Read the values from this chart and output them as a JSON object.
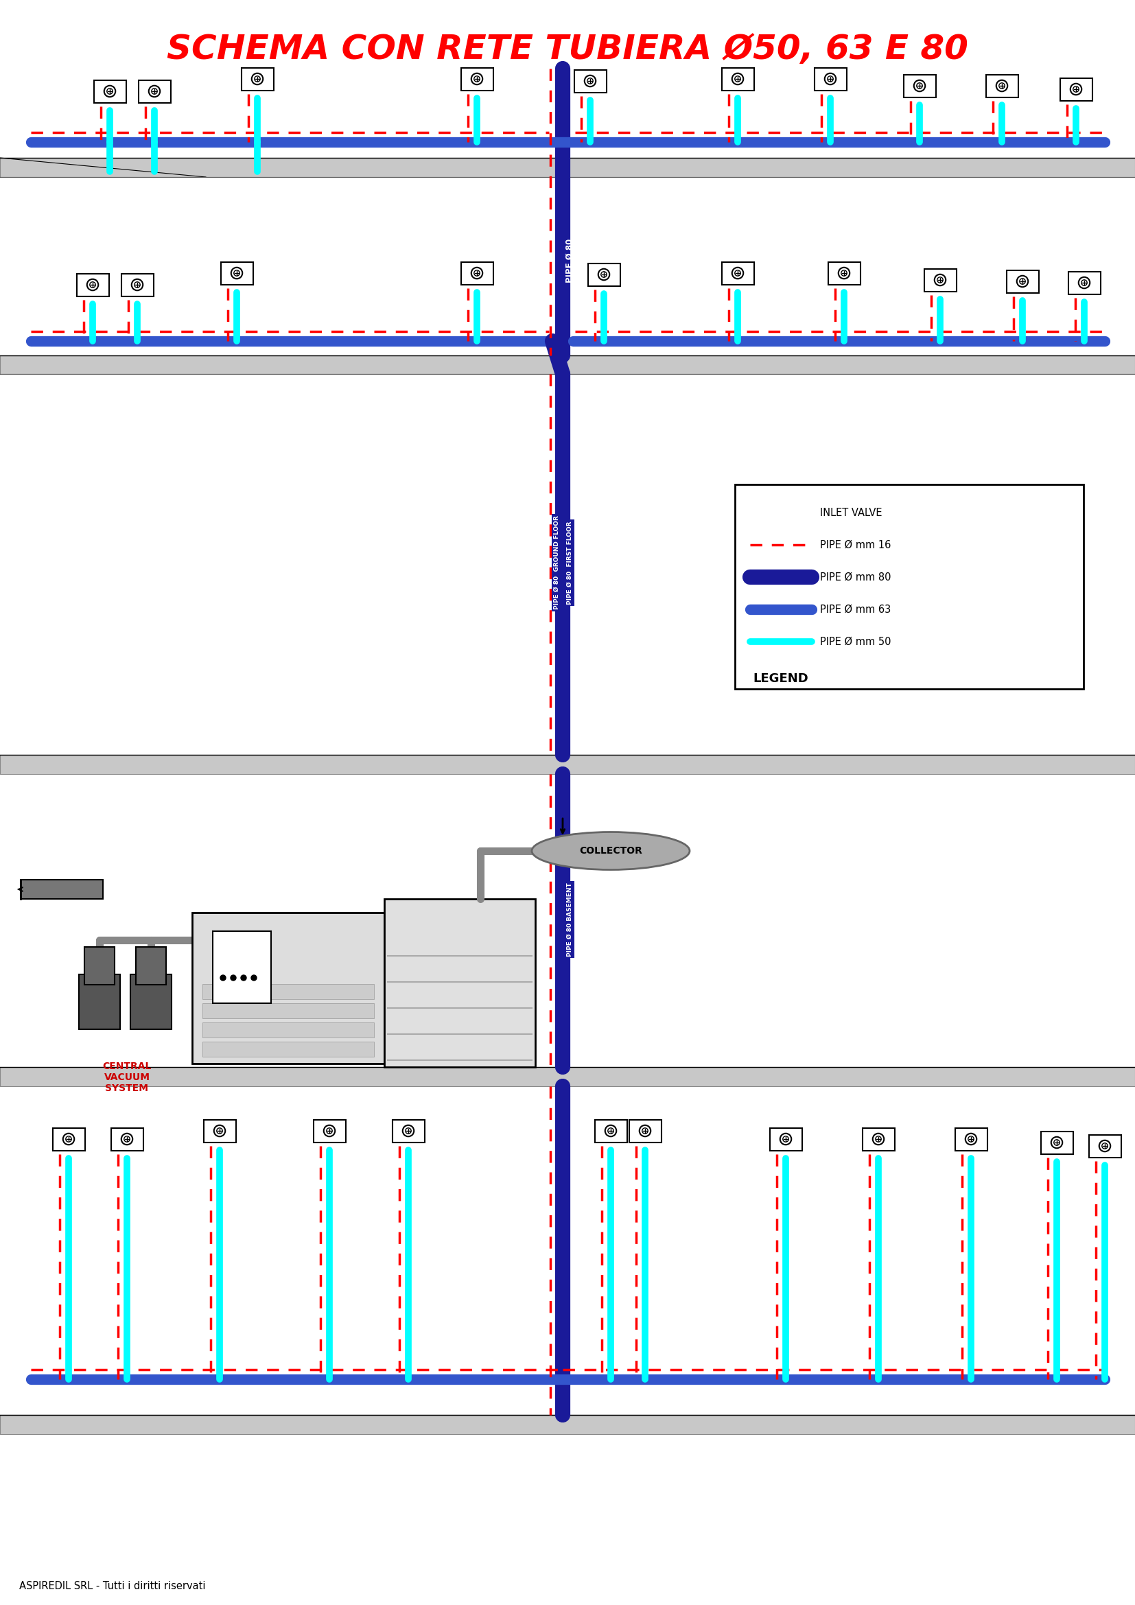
{
  "title": "SCHEMA CON RETE TUBIERA Ø50, 63 E 80",
  "title_color": "#FF0000",
  "title_fontsize": 36,
  "bg_color": "#FFFFFF",
  "cyan": "#00FFFF",
  "blue": "#3355CC",
  "darkblue": "#1A1A99",
  "red": "#FF0000",
  "gray_floor": "#BBBBBB",
  "gray_floor2": "#CCCCCC",
  "footer_text": "ASPIREDIL SRL - Tutti i diritti riservati",
  "label_pipe80": "PIPE Ø 80",
  "label_ground_floor": "PIPE Ø 80  GROUND FLOOR",
  "label_first_floor": "PIPE Ø 80  FIRST FLOOR",
  "label_basement": "PIPE Ø 80 BASEMENT",
  "label_collector": "COLLECTOR",
  "label_central_vacuum": "CENTRAL\nVACUUM\nSYSTEM"
}
